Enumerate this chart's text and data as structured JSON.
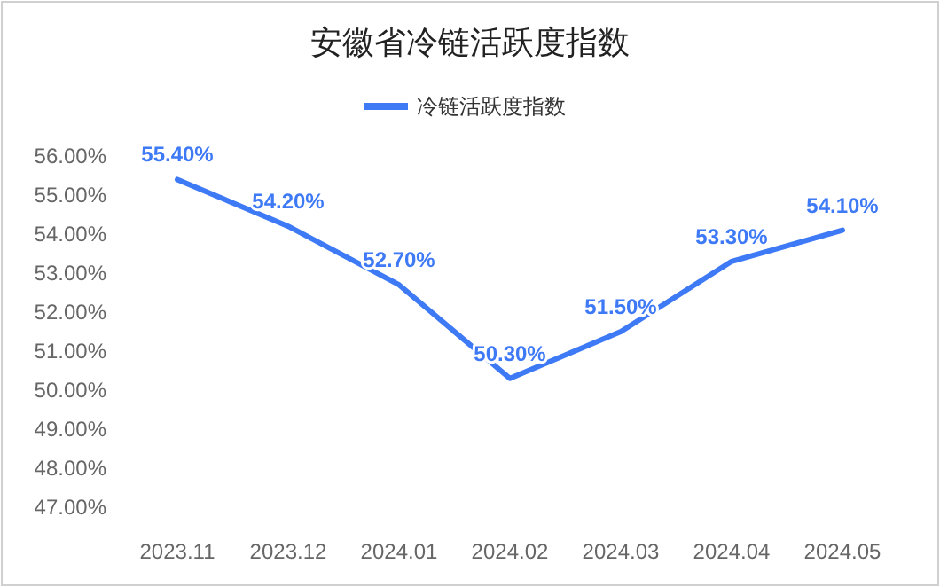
{
  "chart_data": {
    "type": "line",
    "title": "安徽省冷链活跃度指数",
    "categories": [
      "2023.11",
      "2023.12",
      "2024.01",
      "2024.02",
      "2024.03",
      "2024.04",
      "2024.05"
    ],
    "series": [
      {
        "name": "冷链活跃度指数",
        "color": "#3f7af6",
        "values": [
          55.4,
          54.2,
          52.7,
          50.3,
          51.5,
          53.3,
          54.1
        ],
        "value_labels": [
          "55.40%",
          "54.20%",
          "52.70%",
          "50.30%",
          "51.50%",
          "53.30%",
          "54.10%"
        ]
      }
    ],
    "ylim": [
      47,
      56
    ],
    "yticks": [
      {
        "value": 47,
        "label": "47.00%"
      },
      {
        "value": 48,
        "label": "48.00%"
      },
      {
        "value": 49,
        "label": "49.00%"
      },
      {
        "value": 50,
        "label": "50.00%"
      },
      {
        "value": 51,
        "label": "51.00%"
      },
      {
        "value": 52,
        "label": "52.00%"
      },
      {
        "value": 53,
        "label": "53.00%"
      },
      {
        "value": 54,
        "label": "54.00%"
      },
      {
        "value": 55,
        "label": "55.00%"
      },
      {
        "value": 56,
        "label": "56.00%"
      }
    ],
    "legend": "top",
    "grid": false,
    "marker": "none",
    "line_style": "solid"
  }
}
